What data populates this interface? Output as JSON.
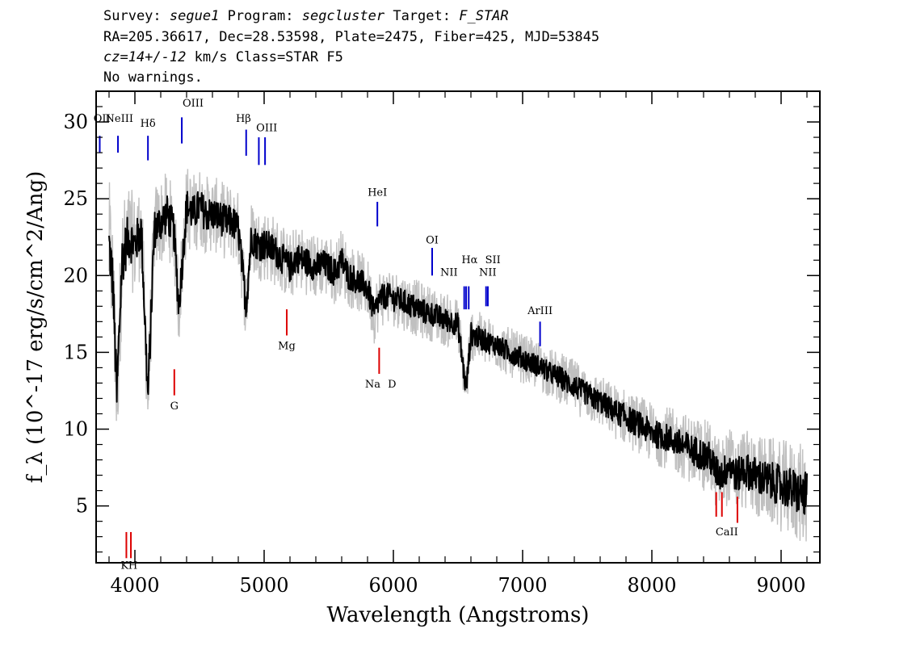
{
  "header": {
    "survey_label": "Survey:",
    "survey": "segue1",
    "program_label": "Program:",
    "program": "segcluster",
    "target_label": "Target:",
    "target": "F_STAR",
    "line2": "RA=205.36617, Dec=28.53598, Plate=2475, Fiber=425, MJD=53845",
    "cz": "cz=14+/-12",
    "cz_rest": " km/s Class=STAR F5",
    "warnings": "No warnings."
  },
  "chart_data": {
    "type": "line",
    "xlabel": "Wavelength (Angstroms)",
    "ylabel": "f_λ (10^-17 erg/s/cm^2/Ang)",
    "xlim": [
      3700,
      9300
    ],
    "ylim": [
      1.3,
      32
    ],
    "x_ticks": [
      4000,
      5000,
      6000,
      7000,
      8000,
      9000
    ],
    "y_ticks": [
      5,
      10,
      15,
      20,
      25,
      30
    ],
    "series": [
      {
        "role": "flux",
        "color": "#000000",
        "x": [
          3800,
          3830,
          3860,
          3900,
          3950,
          4000,
          4050,
          4101,
          4150,
          4200,
          4250,
          4300,
          4340,
          4400,
          4450,
          4500,
          4550,
          4600,
          4650,
          4700,
          4750,
          4800,
          4861,
          4900,
          4950,
          5000,
          5050,
          5100,
          5150,
          5200,
          5250,
          5300,
          5350,
          5400,
          5450,
          5500,
          5550,
          5600,
          5650,
          5700,
          5750,
          5800,
          5850,
          5893,
          5950,
          6000,
          6050,
          6100,
          6150,
          6200,
          6250,
          6300,
          6350,
          6400,
          6450,
          6500,
          6563,
          6600,
          6650,
          6700,
          6750,
          6800,
          6850,
          6900,
          6950,
          7000,
          7050,
          7100,
          7150,
          7200,
          7250,
          7300,
          7350,
          7400,
          7450,
          7500,
          7550,
          7600,
          7650,
          7700,
          7750,
          7800,
          7850,
          7900,
          7950,
          8000,
          8050,
          8100,
          8150,
          8200,
          8250,
          8300,
          8350,
          8400,
          8450,
          8498,
          8542,
          8600,
          8662,
          8700,
          8750,
          8800,
          8850,
          8900,
          8950,
          9000,
          9050,
          9100,
          9150,
          9200
        ],
        "values": [
          22.0,
          19.5,
          12.0,
          21.0,
          22.5,
          22.0,
          23.0,
          12.0,
          23.0,
          23.5,
          24.0,
          23.0,
          18.0,
          24.5,
          24.0,
          24.5,
          24.0,
          24.0,
          23.8,
          23.5,
          23.5,
          23.0,
          18.0,
          22.5,
          22.0,
          22.0,
          21.8,
          21.5,
          21.0,
          20.5,
          21.2,
          21.0,
          20.8,
          20.5,
          20.8,
          20.5,
          20.2,
          21.0,
          20.0,
          19.8,
          19.5,
          19.2,
          17.5,
          18.5,
          18.7,
          18.5,
          18.4,
          18.2,
          18.0,
          17.8,
          17.6,
          17.5,
          17.3,
          17.1,
          17.0,
          16.8,
          12.5,
          16.2,
          16.0,
          15.8,
          15.6,
          15.5,
          15.2,
          15.0,
          14.8,
          14.6,
          14.4,
          14.2,
          14.0,
          13.7,
          13.5,
          13.3,
          13.0,
          12.8,
          12.5,
          12.3,
          12.0,
          11.8,
          11.5,
          11.2,
          11.0,
          10.8,
          10.5,
          10.3,
          10.0,
          9.8,
          9.6,
          9.5,
          9.3,
          9.1,
          8.9,
          8.7,
          8.5,
          8.3,
          8.1,
          7.2,
          7.0,
          7.7,
          6.9,
          7.4,
          7.2,
          7.0,
          6.8,
          6.6,
          6.5,
          6.3,
          6.2,
          6.0,
          5.8,
          5.7
        ]
      },
      {
        "role": "error",
        "color": "#c0c0c0",
        "x": [
          3800,
          3900,
          4000,
          4100,
          4200,
          4300,
          4400,
          4500,
          4600,
          4700,
          4800,
          4900,
          5000,
          5200,
          5400,
          5600,
          5800,
          6000,
          6200,
          6400,
          6600,
          6800,
          7000,
          7200,
          7400,
          7600,
          7800,
          8000,
          8200,
          8400,
          8600,
          8800,
          9000,
          9200
        ],
        "values": [
          3.5,
          3.0,
          2.6,
          2.4,
          2.3,
          2.2,
          2.2,
          2.1,
          2.0,
          2.0,
          2.0,
          1.9,
          1.9,
          1.8,
          1.7,
          1.7,
          1.6,
          1.5,
          1.5,
          1.4,
          1.4,
          1.3,
          1.3,
          1.3,
          1.4,
          1.4,
          1.5,
          1.6,
          1.7,
          1.9,
          2.0,
          2.2,
          2.4,
          2.7
        ]
      }
    ],
    "emission_lines": [
      {
        "label": "OII",
        "x": 3728,
        "y_top": 29.1,
        "y_bot": 28.0
      },
      {
        "label": "NeIII",
        "x": 3869,
        "y_top": 29.1,
        "y_bot": 28.0
      },
      {
        "label": "Hδ",
        "x": 4101,
        "y_top": 29.1,
        "y_bot": 27.5
      },
      {
        "label": "OIII",
        "x": 4363,
        "y_top": 30.3,
        "y_bot": 28.6
      },
      {
        "label": "Hβ",
        "x": 4861,
        "y_top": 29.5,
        "y_bot": 27.8
      },
      {
        "label": "OIII",
        "x": 4959,
        "y_top": 29.0,
        "y_bot": 27.2
      },
      {
        "label": "OIII",
        "x": 5007,
        "y_top": 29.0,
        "y_bot": 27.2
      },
      {
        "label": "HeI",
        "x": 5876,
        "y_top": 24.8,
        "y_bot": 23.2
      },
      {
        "label": "OI",
        "x": 6300,
        "y_top": 21.8,
        "y_bot": 20.0
      },
      {
        "label": "NII",
        "x": 6548,
        "y_top": 19.3,
        "y_bot": 17.8
      },
      {
        "label": "Hα",
        "x": 6563,
        "y_top": 19.3,
        "y_bot": 17.8
      },
      {
        "label": "NII",
        "x": 6583,
        "y_top": 19.3,
        "y_bot": 17.8
      },
      {
        "label": "SII",
        "x": 6717,
        "y_top": 19.3,
        "y_bot": 18.0
      },
      {
        "label": "SII",
        "x": 6731,
        "y_top": 19.3,
        "y_bot": 18.0
      },
      {
        "label": "ArIII",
        "x": 7135,
        "y_top": 17.0,
        "y_bot": 15.4
      }
    ],
    "emission_labels": [
      {
        "text": "OII",
        "x": 3745,
        "y": 30.0
      },
      {
        "text": "NeIII",
        "x": 3880,
        "y": 30.0
      },
      {
        "text": "Hδ",
        "x": 4101,
        "y": 29.7
      },
      {
        "text": "OIII",
        "x": 4450,
        "y": 31.0
      },
      {
        "text": "Hβ",
        "x": 4840,
        "y": 30.0
      },
      {
        "text": "OIII",
        "x": 5020,
        "y": 29.4
      },
      {
        "text": "HeI",
        "x": 5876,
        "y": 25.2
      },
      {
        "text": "OI",
        "x": 6300,
        "y": 22.1
      },
      {
        "text": "NII",
        "x": 6430,
        "y": 20.0
      },
      {
        "text": "Hα",
        "x": 6590,
        "y": 20.8
      },
      {
        "text": "SII",
        "x": 6770,
        "y": 20.8
      },
      {
        "text": "NII",
        "x": 6730,
        "y": 20.0
      },
      {
        "text": "ArIII",
        "x": 7135,
        "y": 17.5
      }
    ],
    "absorption_lines": [
      {
        "label": "K",
        "x": 3934,
        "y_top": 3.3,
        "y_bot": 1.6
      },
      {
        "label": "H",
        "x": 3969,
        "y_top": 3.3,
        "y_bot": 1.6
      },
      {
        "label": "G",
        "x": 4305,
        "y_top": 13.9,
        "y_bot": 12.2
      },
      {
        "label": "Mg",
        "x": 5175,
        "y_top": 17.8,
        "y_bot": 16.1
      },
      {
        "label": "Na",
        "x": 5890,
        "y_top": 15.3,
        "y_bot": 13.6
      },
      {
        "label": "CaII",
        "x": 8498,
        "y_top": 5.9,
        "y_bot": 4.3
      },
      {
        "label": "CaII",
        "x": 8542,
        "y_top": 5.9,
        "y_bot": 4.3
      },
      {
        "label": "CaII",
        "x": 8662,
        "y_top": 5.6,
        "y_bot": 3.9
      }
    ],
    "absorption_labels": [
      {
        "text": "K",
        "x": 3920,
        "y": 0.9
      },
      {
        "text": "H",
        "x": 3985,
        "y": 0.9
      },
      {
        "text": "G",
        "x": 4305,
        "y": 11.3
      },
      {
        "text": "Mg",
        "x": 5175,
        "y": 15.2
      },
      {
        "text": "Na",
        "x": 5840,
        "y": 12.7
      },
      {
        "text": "D",
        "x": 5990,
        "y": 12.7
      },
      {
        "text": "CaII",
        "x": 8580,
        "y": 3.1
      }
    ],
    "emission_color": "#0000cc",
    "absorption_color": "#dd0000"
  }
}
